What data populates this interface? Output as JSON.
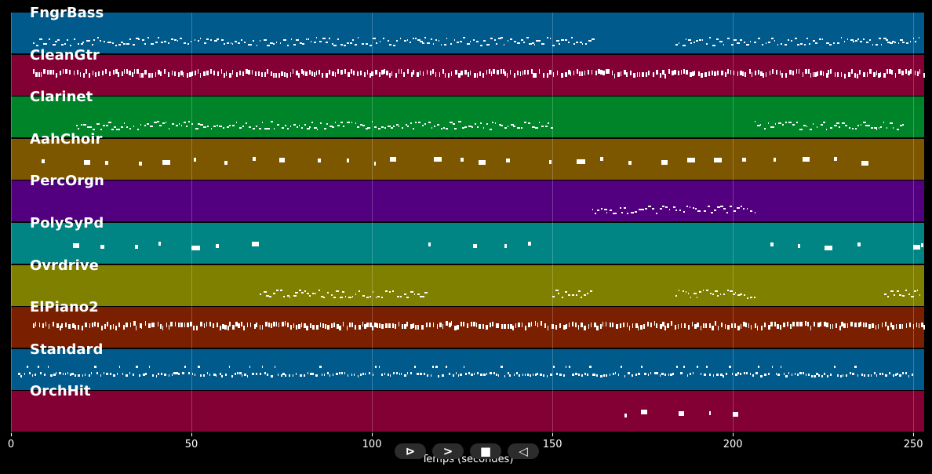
{
  "x_axis": {
    "label": "Temps (secondes)",
    "ticks": [
      "0",
      "50",
      "100",
      "150",
      "200",
      "250"
    ]
  },
  "controls": {
    "play_symbol": "⊳",
    "next_symbol": ">",
    "stop_symbol": "■",
    "prev_symbol": "◁"
  },
  "chart_data": {
    "type": "piano-roll",
    "xlabel": "Temps (secondes)",
    "xlim": [
      0,
      253
    ],
    "grid": true,
    "tracks": [
      {
        "name": "FngrBass",
        "color": "#005a8c",
        "pattern": "dense",
        "segments": [
          [
            6,
            161
          ],
          [
            184,
            206
          ],
          [
            207,
            252
          ]
        ]
      },
      {
        "name": "CleanGtr",
        "color": "#830034",
        "pattern": "chords",
        "segments": [
          [
            6,
            253
          ]
        ]
      },
      {
        "name": "Clarinet",
        "color": "#00842a",
        "pattern": "dense",
        "segments": [
          [
            18,
            150
          ],
          [
            206,
            247
          ]
        ]
      },
      {
        "name": "AahChoir",
        "color": "#7d5600",
        "pattern": "sparse",
        "segments": [
          [
            8,
            241
          ]
        ]
      },
      {
        "name": "PercOrgn",
        "color": "#530080",
        "pattern": "dense",
        "segments": [
          [
            161,
            206
          ]
        ]
      },
      {
        "name": "PolySyPd",
        "color": "#008484",
        "pattern": "sparse",
        "segments": [
          [
            15,
            70
          ],
          [
            115,
            149
          ],
          [
            207,
            241
          ],
          [
            250,
            253
          ]
        ]
      },
      {
        "name": "Ovrdrive",
        "color": "#808000",
        "pattern": "dense",
        "segments": [
          [
            69,
            115
          ],
          [
            150,
            161
          ],
          [
            184,
            206
          ],
          [
            242,
            252
          ]
        ]
      },
      {
        "name": "ElPiano2",
        "color": "#7a2000",
        "pattern": "chords",
        "segments": [
          [
            6,
            253
          ]
        ]
      },
      {
        "name": "Standard",
        "color": "#005a8c",
        "pattern": "drums",
        "segments": [
          [
            2,
            250
          ]
        ]
      },
      {
        "name": "OrchHit",
        "color": "#830034",
        "pattern": "sparse",
        "segments": [
          [
            166,
            206
          ]
        ]
      }
    ]
  }
}
